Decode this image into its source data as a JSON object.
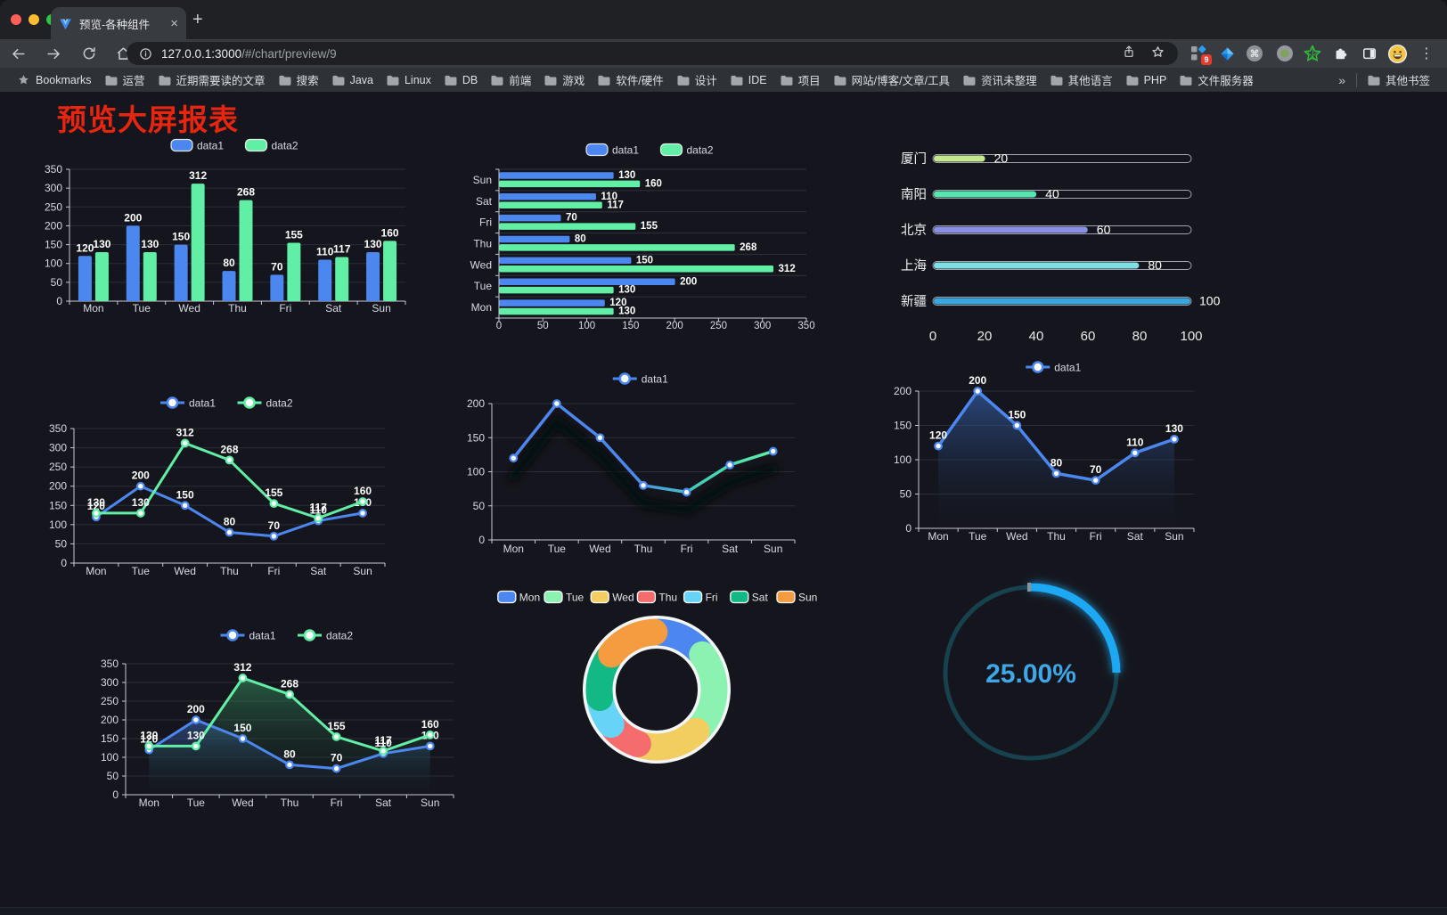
{
  "browser": {
    "traffic_lights": [
      "#FF5F57",
      "#FEBC2E",
      "#28C840"
    ],
    "tab": {
      "title": "预览-各种组件",
      "close_glyph": "×",
      "new_tab_glyph": "+"
    },
    "url": {
      "host": "127.0.0.1:3000",
      "path": "/#/chart/preview/9"
    },
    "extension_badge": "9",
    "menu_glyph": "⋮",
    "bookmarks_bar": {
      "root_label": "Bookmarks",
      "folders": [
        "运营",
        "近期需要读的文章",
        "搜索",
        "Java",
        "Linux",
        "DB",
        "前端",
        "游戏",
        "软件/硬件",
        "设计",
        "IDE",
        "项目",
        "网站/博客/文章/工具",
        "资讯未整理",
        "其他语言",
        "PHP",
        "文件服务器"
      ],
      "overflow_glyph": "»",
      "other_label": "其他书签"
    }
  },
  "page": {
    "title": "预览大屏报表",
    "title_color": "#E8250F",
    "background": "#15161D"
  },
  "chart_data": [
    {
      "type": "bar",
      "categories": [
        "Mon",
        "Tue",
        "Wed",
        "Thu",
        "Fri",
        "Sat",
        "Sun"
      ],
      "ylim": [
        0,
        350
      ],
      "ytick": 50,
      "legend_position": "top",
      "series": [
        {
          "name": "data1",
          "color": "#4C87F0",
          "values": [
            120,
            200,
            150,
            80,
            70,
            110,
            130
          ]
        },
        {
          "name": "data2",
          "color": "#61EFA6",
          "values": [
            130,
            130,
            312,
            268,
            155,
            117,
            160
          ]
        }
      ]
    },
    {
      "type": "hbar",
      "categories": [
        "Mon",
        "Tue",
        "Wed",
        "Thu",
        "Fri",
        "Sat",
        "Sun"
      ],
      "xlim": [
        0,
        350
      ],
      "xtick": 50,
      "legend_position": "top",
      "series": [
        {
          "name": "data1",
          "color": "#4C87F0",
          "values": [
            120,
            200,
            150,
            80,
            70,
            110,
            130
          ]
        },
        {
          "name": "data2",
          "color": "#61EFA6",
          "values": [
            130,
            130,
            312,
            268,
            155,
            117,
            160
          ]
        }
      ]
    },
    {
      "type": "progress",
      "max": 100,
      "xticks": [
        0,
        20,
        40,
        60,
        80,
        100
      ],
      "items": [
        {
          "label": "厦门",
          "value": 20,
          "color": "#C3E88D"
        },
        {
          "label": "南阳",
          "value": 40,
          "color": "#55E6B1"
        },
        {
          "label": "北京",
          "value": 60,
          "color": "#8B8FE3"
        },
        {
          "label": "上海",
          "value": 80,
          "color": "#7EE0E3"
        },
        {
          "label": "新疆",
          "value": 100,
          "color": "#3AA6DE"
        }
      ]
    },
    {
      "type": "line",
      "categories": [
        "Mon",
        "Tue",
        "Wed",
        "Thu",
        "Fri",
        "Sat",
        "Sun"
      ],
      "ylim": [
        0,
        350
      ],
      "ytick": 50,
      "show_labels": true,
      "legend_position": "top",
      "series": [
        {
          "name": "data1",
          "color": "#4C87F0",
          "values": [
            120,
            200,
            150,
            80,
            70,
            110,
            130
          ]
        },
        {
          "name": "data2",
          "color": "#61EFA6",
          "values": [
            130,
            130,
            312,
            268,
            155,
            117,
            160
          ]
        }
      ]
    },
    {
      "type": "line",
      "categories": [
        "Mon",
        "Tue",
        "Wed",
        "Thu",
        "Fri",
        "Sat",
        "Sun"
      ],
      "ylim": [
        0,
        200
      ],
      "ytick": 50,
      "show_labels": false,
      "shadow": true,
      "line_width": 3.5,
      "gradient_line": [
        "#4C87F0",
        "#4C87F0",
        "#3FD0B5",
        "#61EFA6"
      ],
      "gradient_stops": [
        0,
        0.45,
        0.72,
        1
      ],
      "series": [
        {
          "name": "data1",
          "color": "#4C87F0",
          "values": [
            120,
            200,
            150,
            80,
            70,
            110,
            130
          ]
        }
      ]
    },
    {
      "type": "line",
      "categories": [
        "Mon",
        "Tue",
        "Wed",
        "Thu",
        "Fri",
        "Sat",
        "Sun"
      ],
      "ylim": [
        0,
        200
      ],
      "ytick": 50,
      "show_labels": true,
      "line_width": 3.5,
      "series": [
        {
          "name": "data1",
          "color": "#4C87F0",
          "values": [
            120,
            200,
            150,
            80,
            70,
            110,
            130
          ],
          "area": {
            "from": "rgba(58,105,185,0.6)",
            "to": "rgba(18,28,48,0.03)"
          }
        }
      ]
    },
    {
      "type": "line",
      "categories": [
        "Mon",
        "Tue",
        "Wed",
        "Thu",
        "Fri",
        "Sat",
        "Sun"
      ],
      "ylim": [
        0,
        350
      ],
      "ytick": 50,
      "show_labels": true,
      "series": [
        {
          "name": "data1",
          "color": "#4C87F0",
          "values": [
            120,
            200,
            150,
            80,
            70,
            110,
            130
          ],
          "area": {
            "from": "rgba(62,108,188,0.55)",
            "to": "rgba(20,30,50,0.02)"
          }
        },
        {
          "name": "data2",
          "color": "#61EFA6",
          "values": [
            130,
            130,
            312,
            268,
            155,
            117,
            160
          ],
          "area": {
            "from": "rgba(58,158,104,0.5)",
            "to": "rgba(18,40,30,0.02)"
          }
        }
      ]
    },
    {
      "type": "pie",
      "legend_position": "top",
      "items": [
        {
          "name": "Mon",
          "value": 120,
          "color": "#4C86F0"
        },
        {
          "name": "Tue",
          "value": 200,
          "color": "#8CF2B1"
        },
        {
          "name": "Wed",
          "value": 150,
          "color": "#F2CE60"
        },
        {
          "name": "Thu",
          "value": 80,
          "color": "#F56C6C"
        },
        {
          "name": "Fri",
          "value": 70,
          "color": "#67D4F7"
        },
        {
          "name": "Sat",
          "value": 110,
          "color": "#12B984"
        },
        {
          "name": "Sun",
          "value": 130,
          "color": "#F59B40"
        }
      ]
    },
    {
      "type": "gauge",
      "value": 25,
      "max": 100,
      "label": "25.00%",
      "track_color": "#16414D",
      "arc_color": "#1FA8F2",
      "text_color": "#3FA7E8"
    }
  ]
}
